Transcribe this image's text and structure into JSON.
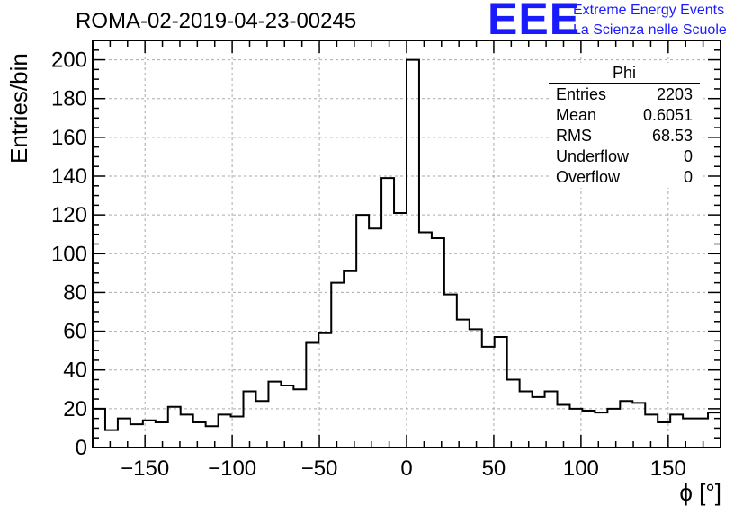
{
  "title": "ROMA-02-2019-04-23-00245",
  "logo": {
    "mark": "EEE",
    "line1": "Extreme Energy Events",
    "line2": "La Scienza nelle Scuole"
  },
  "stats": {
    "name": "Phi",
    "rows": [
      {
        "label": "Entries",
        "value": "2203"
      },
      {
        "label": "Mean",
        "value": "0.6051"
      },
      {
        "label": "RMS",
        "value": "68.53"
      },
      {
        "label": "Underflow",
        "value": "0"
      },
      {
        "label": "Overflow",
        "value": "0"
      }
    ]
  },
  "chart_data": {
    "type": "bar",
    "histogram": true,
    "title": "ROMA-02-2019-04-23-00245",
    "xlabel": "ϕ [°]",
    "ylabel": "Entries/bin",
    "xlim": [
      -180,
      180
    ],
    "ylim": [
      0,
      210
    ],
    "bin_width": 7.2,
    "xticks": [
      -150,
      -100,
      -50,
      0,
      50,
      100,
      150
    ],
    "yticks": [
      0,
      20,
      40,
      60,
      80,
      100,
      120,
      140,
      160,
      180,
      200
    ],
    "grid": true,
    "line_color": "#000000",
    "values": [
      20,
      9,
      15,
      12,
      14,
      13,
      21,
      17,
      13,
      11,
      17,
      16,
      29,
      24,
      34,
      32,
      30,
      54,
      59,
      85,
      91,
      120,
      113,
      139,
      121,
      200,
      111,
      108,
      79,
      66,
      61,
      52,
      57,
      35,
      29,
      26,
      29,
      22,
      20,
      19,
      18,
      20,
      24,
      23,
      17,
      13,
      17,
      15,
      15,
      18
    ]
  }
}
